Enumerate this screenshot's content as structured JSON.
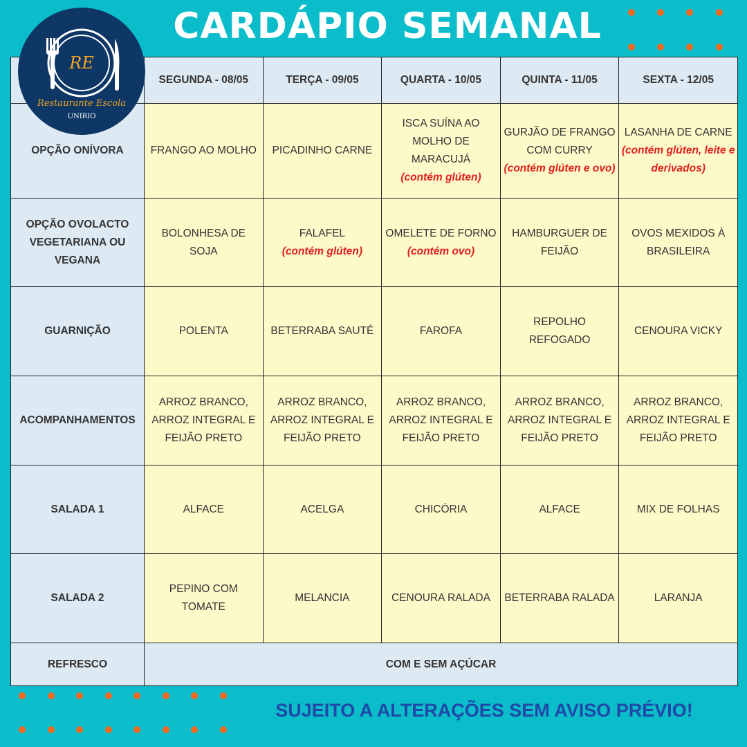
{
  "title": "CARDÁPIO SEMANAL",
  "logo": {
    "initials": "RE",
    "name": "Restaurante Escola",
    "institution": "UNIRIO"
  },
  "colors": {
    "background": "#0bbdca",
    "dots": "#f26b21",
    "header_cell": "#dde9f3",
    "menu_cell": "#fdf9c9",
    "allergen": "#e02020",
    "footer": "#1f48a8",
    "logo": "#0e3766"
  },
  "days": [
    "SEGUNDA - 08/05",
    "TERÇA - 09/05",
    "QUARTA - 10/05",
    "QUINTA - 11/05",
    "SEXTA - 12/05"
  ],
  "rows": [
    {
      "label": "OPÇÃO ONÍVORA",
      "cells": [
        {
          "dish": "FRANGO AO MOLHO",
          "note": ""
        },
        {
          "dish": "PICADINHO CARNE",
          "note": ""
        },
        {
          "dish": "ISCA SUÍNA AO MOLHO DE MARACUJÁ",
          "note": "(contém glúten)"
        },
        {
          "dish": "GURJÃO DE FRANGO COM CURRY",
          "note": "(contém glúten e ovo)"
        },
        {
          "dish": "LASANHA DE CARNE",
          "note": "(contém glúten, leite e derivados)"
        }
      ]
    },
    {
      "label": "OPÇÃO OVOLACTO VEGETARIANA OU VEGANA",
      "cells": [
        {
          "dish": "BOLONHESA DE SOJA",
          "note": ""
        },
        {
          "dish": "FALAFEL",
          "note": "(contém glúten)"
        },
        {
          "dish": "OMELETE DE FORNO",
          "note": "(contém ovo)"
        },
        {
          "dish": "HAMBURGUER DE FEIJÃO",
          "note": ""
        },
        {
          "dish": "OVOS MEXIDOS À BRASILEIRA",
          "note": ""
        }
      ]
    },
    {
      "label": "GUARNIÇÃO",
      "cells": [
        {
          "dish": "POLENTA",
          "note": ""
        },
        {
          "dish": "BETERRABA SAUTÉ",
          "note": ""
        },
        {
          "dish": "FAROFA",
          "note": ""
        },
        {
          "dish": "REPOLHO REFOGADO",
          "note": ""
        },
        {
          "dish": "CENOURA VICKY",
          "note": ""
        }
      ]
    },
    {
      "label": "ACOMPANHAMENTOS",
      "cells": [
        {
          "dish": "ARROZ BRANCO, ARROZ INTEGRAL E FEIJÃO PRETO",
          "note": ""
        },
        {
          "dish": "ARROZ BRANCO, ARROZ INTEGRAL E FEIJÃO PRETO",
          "note": ""
        },
        {
          "dish": "ARROZ BRANCO, ARROZ INTEGRAL E FEIJÃO PRETO",
          "note": ""
        },
        {
          "dish": "ARROZ BRANCO, ARROZ INTEGRAL E FEIJÃO PRETO",
          "note": ""
        },
        {
          "dish": "ARROZ BRANCO, ARROZ INTEGRAL E FEIJÃO PRETO",
          "note": ""
        }
      ]
    },
    {
      "label": "SALADA 1",
      "cells": [
        {
          "dish": "ALFACE",
          "note": ""
        },
        {
          "dish": "ACELGA",
          "note": ""
        },
        {
          "dish": "CHICÓRIA",
          "note": ""
        },
        {
          "dish": "ALFACE",
          "note": ""
        },
        {
          "dish": "MIX DE FOLHAS",
          "note": ""
        }
      ]
    },
    {
      "label": "SALADA 2",
      "cells": [
        {
          "dish": "PEPINO COM TOMATE",
          "note": ""
        },
        {
          "dish": "MELANCIA",
          "note": ""
        },
        {
          "dish": "CENOURA RALADA",
          "note": ""
        },
        {
          "dish": "BETERRABA RALADA",
          "note": ""
        },
        {
          "dish": "LARANJA",
          "note": ""
        }
      ]
    }
  ],
  "refresco": {
    "label": "REFRESCO",
    "value": "COM E SEM AÇÚCAR"
  },
  "footer": "SUJEITO A ALTERAÇÕES SEM AVISO PRÉVIO!"
}
